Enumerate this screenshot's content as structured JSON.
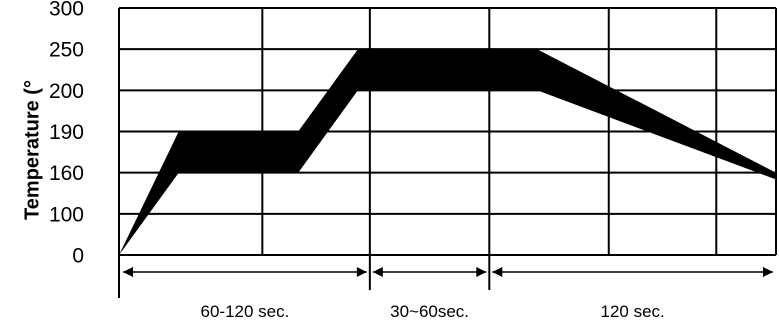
{
  "chart_data": {
    "type": "area",
    "title": "",
    "xlabel": "",
    "ylabel": "Temperature (°",
    "ytick_labels": [
      "300",
      "250",
      "200",
      "190",
      "160",
      "100",
      "0"
    ],
    "grid": true,
    "colors": {
      "band": "#000000",
      "grid": "#000000",
      "background": "#ffffff"
    },
    "band": {
      "name": "",
      "upper": [
        [
          0,
          0
        ],
        [
          1,
          190
        ],
        [
          3,
          190
        ],
        [
          4,
          250
        ],
        [
          7,
          250
        ],
        [
          11,
          160
        ]
      ],
      "lower": [
        [
          0,
          0
        ],
        [
          1,
          160
        ],
        [
          3,
          160
        ],
        [
          4,
          200
        ],
        [
          7,
          200
        ],
        [
          11,
          150
        ]
      ]
    },
    "x_grid_divisions": 11,
    "segments": [
      {
        "label": "60-120 sec.",
        "from": 0,
        "to": 4.2
      },
      {
        "label": "30~60sec.",
        "from": 4.2,
        "to": 6.2
      },
      {
        "label": "120 sec.",
        "from": 6.2,
        "to": 11
      }
    ]
  }
}
